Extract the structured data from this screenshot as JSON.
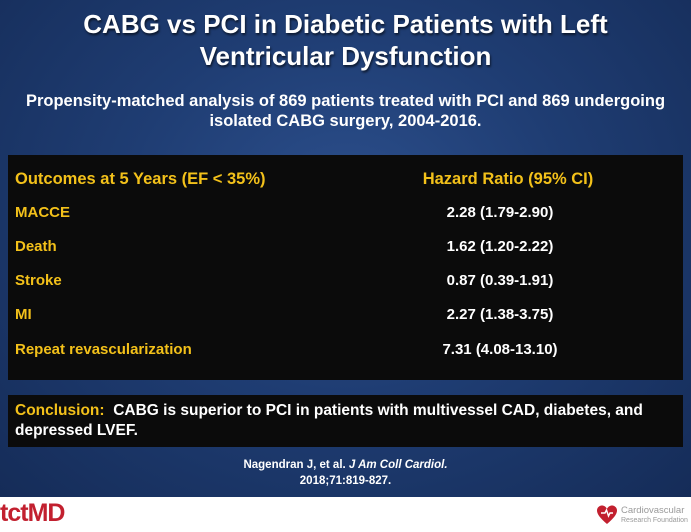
{
  "slide": {
    "title": "CABG vs PCI in Diabetic Patients with Left Ventricular Dysfunction",
    "subtitle": "Propensity-matched analysis of 869 patients treated with PCI and 869 undergoing isolated CABG surgery, 2004-2016."
  },
  "table": {
    "header": {
      "outcome": "Outcomes at 5 Years (EF < 35%)",
      "hr": "Hazard Ratio (95% CI)"
    },
    "rows": [
      {
        "outcome": "MACCE",
        "hr": "2.28 (1.79-2.90)"
      },
      {
        "outcome": "Death",
        "hr": "1.62 (1.20-2.22)"
      },
      {
        "outcome": "Stroke",
        "hr": "0.87 (0.39-1.91)"
      },
      {
        "outcome": "MI",
        "hr": "2.27 (1.38-3.75)"
      },
      {
        "outcome": "Repeat revascularization",
        "hr": "7.31 (4.08-13.10)"
      }
    ]
  },
  "conclusion": {
    "label": "Conclusion:",
    "text": "CABG is superior to PCI in patients with multivessel CAD, diabetes, and depressed LVEF."
  },
  "citation": {
    "authors": "Nagendran J, et al.",
    "journal": "J Am Coll Cardiol.",
    "ref": "2018;71:819-827."
  },
  "footer": {
    "logo_left_tct": "tct",
    "logo_left_md": "MD",
    "logo_right_line1": "Cardiovascular",
    "logo_right_line2": "Research Foundation",
    "logo_right_icon": "heart-icon"
  },
  "colors": {
    "accent": "#f3c11a",
    "background": "#1f3d73",
    "brand_red": "#c2202f"
  }
}
